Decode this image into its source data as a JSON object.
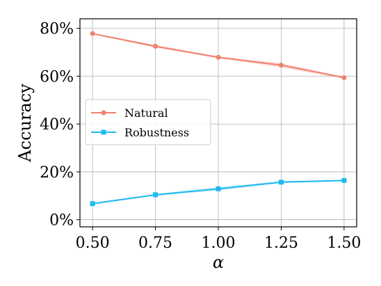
{
  "chart_data": {
    "type": "line",
    "x": [
      0.5,
      0.75,
      1.0,
      1.25,
      1.5
    ],
    "x_tick_labels": [
      "0.50",
      "0.75",
      "1.00",
      "1.25",
      "1.50"
    ],
    "y_tick_values": [
      0,
      20,
      40,
      60,
      80
    ],
    "y_tick_labels": [
      "0%",
      "20%",
      "40%",
      "60%",
      "80%"
    ],
    "xlim": [
      0.45,
      1.55
    ],
    "ylim": [
      -3,
      84
    ],
    "xlabel": "α",
    "ylabel": "Accuracy",
    "title": "",
    "grid": true,
    "legend_position": "center-left",
    "series": [
      {
        "name": "Natural",
        "values": [
          77.8,
          72.5,
          67.9,
          64.6,
          59.4
        ],
        "band_low": [
          77.5,
          71.9,
          67.5,
          63.6,
          58.9
        ],
        "band_high": [
          78.1,
          73.0,
          68.3,
          65.5,
          59.9
        ],
        "color": "#f08070",
        "marker": "circle"
      },
      {
        "name": "Robustness",
        "values": [
          6.7,
          10.4,
          12.9,
          15.7,
          16.4
        ],
        "band_low": [
          6.4,
          10.0,
          12.2,
          15.3,
          16.1
        ],
        "band_high": [
          7.0,
          10.8,
          13.6,
          16.1,
          16.7
        ],
        "color": "#1fbaf0",
        "marker": "square"
      }
    ]
  }
}
